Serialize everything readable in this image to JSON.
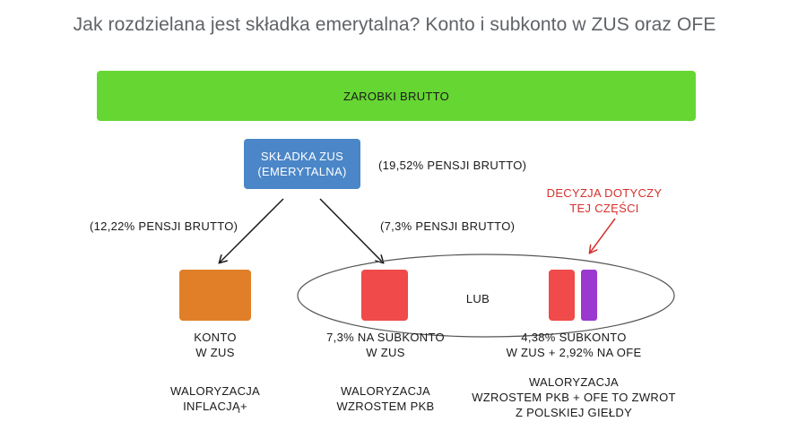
{
  "title": "Jak rozdzielana jest składka emerytalna? Konto i subkonto w ZUS oraz OFE",
  "gross_bar": {
    "label": "ZAROBKI BRUTTO",
    "color": "#66d633"
  },
  "zus_box": {
    "line1": "SKŁADKA ZUS",
    "line2": "(EMERYTALNA)",
    "color": "#4a86c8"
  },
  "percentages": {
    "total": "(19,52% PENSJI BRUTTO)",
    "konto": "(12,22% PENSJI BRUTTO)",
    "subkonto": "(7,3% PENSJI BRUTTO)"
  },
  "decision_note": {
    "line1": "DECYZJA DOTYCZY",
    "line2": "TEJ CZĘŚCI",
    "color": "#d6302c"
  },
  "or_label": "LUB",
  "options": {
    "konto": {
      "line1": "KONTO",
      "line2": "W ZUS",
      "valor1": "WALORYZACJA",
      "valor2": "INFLACJĄ+",
      "color": "#e07f28"
    },
    "subkonto": {
      "line1": "7,3% NA SUBKONTO",
      "line2": "W ZUS",
      "valor1": "WALORYZACJA",
      "valor2": "WZROSTEM PKB",
      "color": "#f04a4a"
    },
    "mixed": {
      "line1": "4,38% SUBKONTO",
      "line2": "W ZUS + 2,92% NA OFE",
      "valor1": "WALORYZACJA",
      "valor2": "WZROSTEM PKB + OFE TO ZWROT",
      "valor3": "Z POLSKIEJ GIEŁDY",
      "colors": [
        "#f04a4a",
        "#9a38d0"
      ]
    }
  }
}
